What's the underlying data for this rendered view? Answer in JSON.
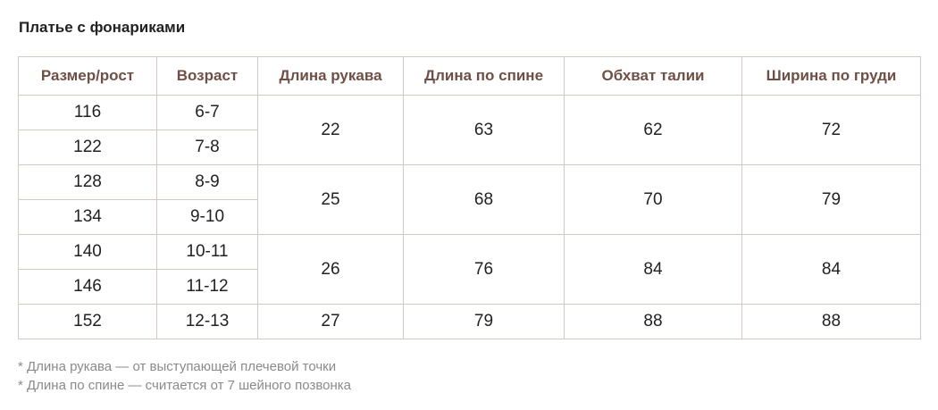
{
  "title": "Платье с фонариками",
  "table": {
    "headers": [
      "Размер/рост",
      "Возраст",
      "Длина рукава",
      "Длина по спине",
      "Обхват талии",
      "Ширина по груди"
    ],
    "sizes": [
      {
        "size": "116",
        "age": "6-7"
      },
      {
        "size": "122",
        "age": "7-8"
      },
      {
        "size": "128",
        "age": "8-9"
      },
      {
        "size": "134",
        "age": "9-10"
      },
      {
        "size": "140",
        "age": "10-11"
      },
      {
        "size": "146",
        "age": "11-12"
      },
      {
        "size": "152",
        "age": "12-13"
      }
    ],
    "groups": [
      {
        "sleeve": "22",
        "back": "63",
        "waist": "62",
        "chest": "72"
      },
      {
        "sleeve": "25",
        "back": "68",
        "waist": "70",
        "chest": "79"
      },
      {
        "sleeve": "26",
        "back": "76",
        "waist": "84",
        "chest": "84"
      },
      {
        "sleeve": "27",
        "back": "79",
        "waist": "88",
        "chest": "88"
      }
    ]
  },
  "notes": [
    "* Длина рукава — от выступающей плечевой точки",
    "* Длина по спине — считается от 7 шейного позвонка"
  ],
  "colors": {
    "header_text": "#6f5047",
    "border": "#d2c9c5",
    "note_text": "#8a8a8a"
  }
}
